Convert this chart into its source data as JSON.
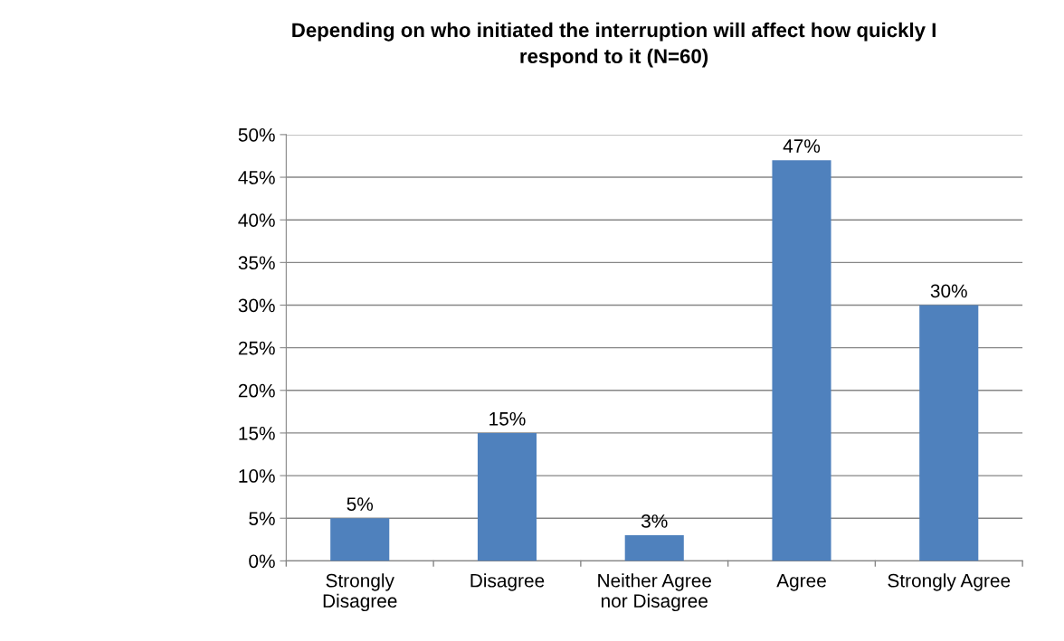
{
  "chart_data": {
    "type": "bar",
    "title": "Depending on who initiated the interruption will affect how quickly I\nrespond to it (N=60)",
    "categories": [
      "Strongly\nDisagree",
      "Disagree",
      "Neither Agree\nnor Disagree",
      "Agree",
      "Strongly Agree"
    ],
    "values": [
      5,
      15,
      3,
      47,
      30
    ],
    "value_labels": [
      "5%",
      "15%",
      "3%",
      "47%",
      "30%"
    ],
    "color": "#4f81bd",
    "ylim": [
      0,
      50
    ],
    "yticks": [
      {
        "value": 0,
        "label": "0%"
      },
      {
        "value": 5,
        "label": "5%"
      },
      {
        "value": 10,
        "label": "10%"
      },
      {
        "value": 15,
        "label": "15%"
      },
      {
        "value": 20,
        "label": "20%"
      },
      {
        "value": 25,
        "label": "25%"
      },
      {
        "value": 30,
        "label": "30%"
      },
      {
        "value": 35,
        "label": "35%"
      },
      {
        "value": 40,
        "label": "40%"
      },
      {
        "value": 45,
        "label": "45%"
      },
      {
        "value": 50,
        "label": "50%"
      }
    ],
    "grid": "y"
  }
}
